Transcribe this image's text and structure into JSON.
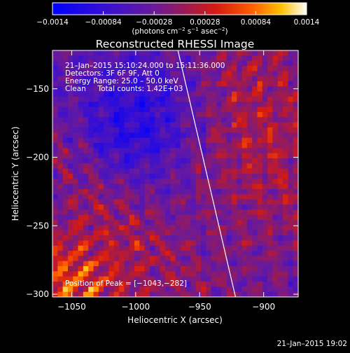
{
  "chart_data": {
    "type": "heatmap",
    "title": "Reconstructed RHESSI Image",
    "xlabel": "Heliocentric X (arcsec)",
    "ylabel": "Heliocentric Y (arcsec)",
    "xlim": [
      -1065,
      -873
    ],
    "ylim": [
      -302,
      -122
    ],
    "xticks": [
      -1050,
      -1000,
      -950,
      -900
    ],
    "xtick_labels": [
      "−1050",
      "−1000",
      "−950",
      "−900"
    ],
    "yticks": [
      -150,
      -200,
      -250,
      -300
    ],
    "ytick_labels": [
      "−150",
      "−200",
      "−250",
      "−300"
    ],
    "colorbar": {
      "range": [
        -0.0014,
        0.0014
      ],
      "ticks": [
        -0.0014,
        -0.00084,
        -0.00028,
        0.00028,
        0.00084,
        0.0014
      ],
      "tick_labels": [
        "−0.0014",
        "−0.00084",
        "−0.00028",
        "0.00028",
        "0.00084",
        "0.0014"
      ],
      "label_parts": [
        "(photons cm",
        "−2",
        " s",
        "−1",
        " asec",
        "−2",
        ")"
      ]
    },
    "info_lines": [
      "21–Jan–2015 15:10:24.000 to 15:11:36.000",
      "Detectors: 3F 6F 9F, Att 0",
      "Energy Range: 25.0 – 50.0 keV",
      "Clean     Total counts: 1.42E+03"
    ],
    "peak_label": "Position of Peak = [−1043,−282]",
    "peak": [
      -1043,
      -282
    ],
    "limb_line": [
      [
        -967,
        -122
      ],
      [
        -922,
        -302
      ]
    ],
    "grid": false
  },
  "footer": {
    "timestamp": "21–Jan–2015 19:02"
  }
}
